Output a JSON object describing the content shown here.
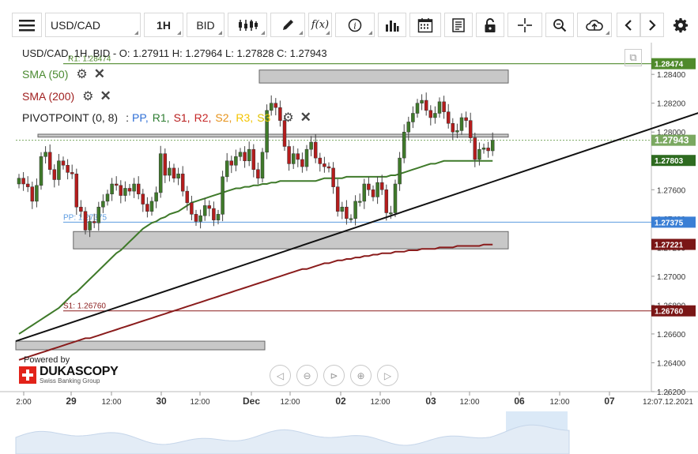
{
  "toolbar": {
    "symbol": "USD/CAD",
    "timeframe": "1H",
    "side": "BID",
    "fx_label": "f(x)"
  },
  "legend": {
    "ohlc": "USD/CAD, 1H, BID - O: 1.27911 H: 1.27964 L: 1.27828 C: 1.27943",
    "sma50": "SMA (50)",
    "sma200": "SMA (200)",
    "pivot_title": "PIVOTPOINT (0, 8)",
    "pivot_items": [
      {
        "label": "PP,",
        "color": "#2f6fd6"
      },
      {
        "label": "R1,",
        "color": "#2e7d32"
      },
      {
        "label": "S1,",
        "color": "#b71c1c"
      },
      {
        "label": "R2,",
        "color": "#c62828"
      },
      {
        "label": "S2,",
        "color": "#e6921a"
      },
      {
        "label": "R3,",
        "color": "#f4c400"
      },
      {
        "label": "S3",
        "color": "#e0c200"
      }
    ],
    "r1_label": "R1: 1.28474",
    "s1_label": "S1: 1.26760",
    "pp_label": "PP: 1.27375"
  },
  "logo": {
    "powered": "Powered by",
    "brand": "DUKASCOPY",
    "sub": "Swiss Banking Group"
  },
  "chart_data": {
    "type": "candlestick",
    "symbol": "USD/CAD",
    "timeframe": "1H",
    "ylim": [
      1.262,
      1.2862
    ],
    "y_ticks": [
      "1.28400",
      "1.28200",
      "1.28000",
      "1.27800",
      "1.27600",
      "1.27400",
      "1.27200",
      "1.27000",
      "1.26800",
      "1.26600",
      "1.26400",
      "1.26200"
    ],
    "x_ticks": [
      "2:00",
      "29",
      "12:00",
      "30",
      "12:00",
      "Dec",
      "12:00",
      "02",
      "12:00",
      "03",
      "12:00",
      "06",
      "12:00",
      "07",
      "12:07.12.2021"
    ],
    "price_tags": [
      {
        "value": 1.28474,
        "label": "1.28474",
        "color": "#4f8a2b"
      },
      {
        "value": 1.27943,
        "label": "1.27943",
        "color": "#7aa860"
      },
      {
        "value": 1.27803,
        "label": "1.27803",
        "color": "#2e6b20"
      },
      {
        "value": 1.27375,
        "label": "1.27375",
        "color": "#3a7fd5"
      },
      {
        "value": 1.27221,
        "label": "1.27221",
        "color": "#7a1616"
      },
      {
        "value": 1.2676,
        "label": "1.26760",
        "color": "#7a1616"
      }
    ],
    "pivots": {
      "R1": 1.28474,
      "PP": 1.27375,
      "S1": 1.2676
    },
    "last_close": 1.27943,
    "zones": [
      {
        "from_bar": 55,
        "to_bar": 110,
        "low": 1.2834,
        "high": 1.2843
      },
      {
        "from_bar": 5,
        "to_bar": 110,
        "low": 1.27965,
        "high": 1.27985
      },
      {
        "from_bar": 13,
        "to_bar": 110,
        "low": 1.2719,
        "high": 1.2731
      },
      {
        "from_bar": 0,
        "to_bar": 55,
        "low": 1.2649,
        "high": 1.2655
      }
    ],
    "trendline": {
      "from": [
        0,
        1.2655
      ],
      "to": [
        162,
        1.2822
      ]
    },
    "closes": [
      1.2768,
      1.2764,
      1.2762,
      1.2752,
      1.2763,
      1.2783,
      1.2786,
      1.2774,
      1.2767,
      1.278,
      1.2777,
      1.2772,
      1.2771,
      1.2748,
      1.2745,
      1.2732,
      1.2738,
      1.2737,
      1.2748,
      1.2752,
      1.2757,
      1.2764,
      1.2763,
      1.2756,
      1.2761,
      1.2759,
      1.2764,
      1.2757,
      1.275,
      1.2745,
      1.2752,
      1.2758,
      1.2785,
      1.277,
      1.2775,
      1.2768,
      1.2771,
      1.2759,
      1.2751,
      1.2743,
      1.2738,
      1.2742,
      1.2749,
      1.2747,
      1.2739,
      1.2743,
      1.2769,
      1.278,
      1.2777,
      1.2783,
      1.2786,
      1.278,
      1.2788,
      1.2774,
      1.2768,
      1.2786,
      1.2815,
      1.282,
      1.2817,
      1.2808,
      1.279,
      1.2778,
      1.2785,
      1.2781,
      1.2776,
      1.2788,
      1.2793,
      1.2782,
      1.2778,
      1.2776,
      1.2775,
      1.2762,
      1.2745,
      1.2748,
      1.274,
      1.274,
      1.2752,
      1.2752,
      1.2764,
      1.276,
      1.2755,
      1.2765,
      1.276,
      1.2744,
      1.2744,
      1.2764,
      1.2782,
      1.28,
      1.2807,
      1.2813,
      1.282,
      1.2822,
      1.2815,
      1.281,
      1.2813,
      1.2821,
      1.2814,
      1.2806,
      1.28,
      1.2801,
      1.281,
      1.2808,
      1.2796,
      1.2781,
      1.2788,
      1.2789,
      1.2787,
      1.27943
    ],
    "sma50": [
      1.266,
      1.2662,
      1.2664,
      1.2666,
      1.2668,
      1.267,
      1.2672,
      1.2674,
      1.2676,
      1.2678,
      1.2681,
      1.2684,
      1.2687,
      1.2689,
      1.2692,
      1.2695,
      1.2698,
      1.2701,
      1.2704,
      1.2707,
      1.271,
      1.2713,
      1.2716,
      1.2718,
      1.2721,
      1.2724,
      1.2727,
      1.273,
      1.2733,
      1.2735,
      1.2737,
      1.2738,
      1.274,
      1.2741,
      1.2743,
      1.2744,
      1.2745,
      1.2747,
      1.2749,
      1.2751,
      1.2752,
      1.2753,
      1.2754,
      1.2755,
      1.2756,
      1.2757,
      1.2758,
      1.2759,
      1.276,
      1.2761,
      1.2761,
      1.2762,
      1.2762,
      1.2763,
      1.2763,
      1.2764,
      1.2764,
      1.2765,
      1.2765,
      1.2766,
      1.2766,
      1.2766,
      1.2766,
      1.2766,
      1.2766,
      1.2766,
      1.2766,
      1.2766,
      1.2767,
      1.2768,
      1.2768,
      1.2768,
      1.2768,
      1.2768,
      1.2769,
      1.2769,
      1.2769,
      1.2769,
      1.2769,
      1.2769,
      1.2769,
      1.2769,
      1.2769,
      1.2769,
      1.277,
      1.277,
      1.2771,
      1.2772,
      1.2773,
      1.2774,
      1.2775,
      1.2776,
      1.2777,
      1.2778,
      1.2778,
      1.2779,
      1.278,
      1.278,
      1.278,
      1.278,
      1.278,
      1.278,
      1.278,
      1.278,
      1.278,
      1.278,
      1.278,
      1.278
    ],
    "sma200": [
      1.2642,
      1.2643,
      1.2644,
      1.2645,
      1.2646,
      1.2647,
      1.2648,
      1.2649,
      1.265,
      1.2651,
      1.2652,
      1.2653,
      1.2654,
      1.2655,
      1.2656,
      1.2657,
      1.2657,
      1.2658,
      1.2659,
      1.266,
      1.2661,
      1.2662,
      1.2663,
      1.2664,
      1.2665,
      1.2666,
      1.2667,
      1.2668,
      1.2669,
      1.267,
      1.2671,
      1.2672,
      1.2673,
      1.2674,
      1.2675,
      1.2676,
      1.2677,
      1.2678,
      1.2679,
      1.268,
      1.2681,
      1.2682,
      1.2683,
      1.2684,
      1.2685,
      1.2686,
      1.2687,
      1.2688,
      1.2689,
      1.269,
      1.2691,
      1.2692,
      1.2693,
      1.2694,
      1.2695,
      1.2696,
      1.2697,
      1.2698,
      1.2699,
      1.27,
      1.2701,
      1.2702,
      1.2703,
      1.2704,
      1.2705,
      1.2705,
      1.2706,
      1.2707,
      1.2708,
      1.2709,
      1.2709,
      1.271,
      1.2711,
      1.2711,
      1.2712,
      1.2712,
      1.2713,
      1.2713,
      1.2714,
      1.2714,
      1.2715,
      1.2715,
      1.2716,
      1.2716,
      1.2716,
      1.2717,
      1.2717,
      1.2717,
      1.2718,
      1.2718,
      1.2718,
      1.2719,
      1.2719,
      1.2719,
      1.2719,
      1.272,
      1.272,
      1.272,
      1.272,
      1.2721,
      1.2721,
      1.2721,
      1.2721,
      1.2721,
      1.2721,
      1.2722,
      1.2722,
      1.2722
    ]
  }
}
